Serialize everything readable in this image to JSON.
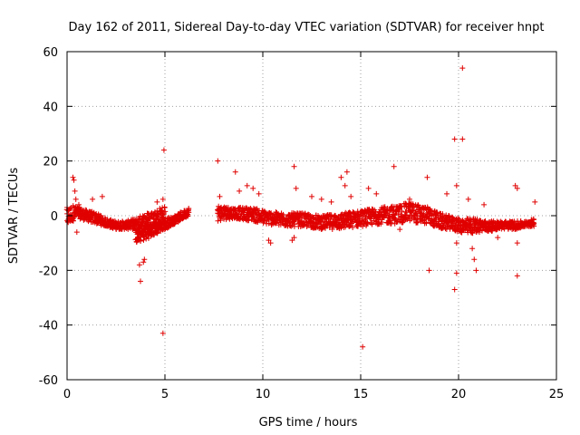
{
  "chart_data": {
    "type": "scatter",
    "title": "Day 162 of 2011, Sidereal Day-to-day VTEC variation (SDTVAR) for receiver hnpt",
    "xlabel": "GPS time / hours",
    "ylabel": "SDTVAR / TECUs",
    "xlim": [
      0,
      25
    ],
    "ylim": [
      -60,
      60
    ],
    "xticks": [
      0,
      5,
      10,
      15,
      20,
      25
    ],
    "xtick_labels": [
      "0",
      "5",
      "10",
      "15",
      "20",
      "25"
    ],
    "yticks": [
      -60,
      -40,
      -20,
      0,
      20,
      40,
      60
    ],
    "ytick_labels": [
      "-60",
      "-40",
      "-20",
      "0",
      "20",
      "40",
      "60"
    ],
    "grid": true,
    "marker": "+",
    "color": "#e00000",
    "band_segments": [
      {
        "x": [
          0.0,
          0.3,
          0.6,
          1.0,
          1.5,
          2.0,
          2.5,
          3.0,
          3.5,
          4.0,
          4.5,
          5.0
        ],
        "y_low": [
          -4,
          -2,
          -1,
          -2,
          -3,
          -4,
          -5,
          -5,
          -5,
          -5,
          -4,
          -3
        ],
        "y_high": [
          3,
          4,
          3,
          2,
          1,
          -1,
          -2,
          -2,
          -1,
          1,
          2,
          4
        ]
      },
      {
        "x": [
          3.5,
          4.0,
          4.5,
          5.0,
          5.5,
          6.0,
          6.2
        ],
        "y_low": [
          -10,
          -9,
          -7,
          -5,
          -3,
          -1,
          0
        ],
        "y_high": [
          -5,
          -4,
          -3,
          -1,
          0,
          2,
          3
        ]
      },
      {
        "x": [
          7.7,
          8.5,
          9.5,
          10.0,
          11.0,
          12.0,
          13.0,
          14.0,
          15.0,
          16.0,
          17.0,
          17.5,
          18.0,
          18.5,
          19.0,
          19.5,
          20.0,
          20.5,
          21.0,
          21.5,
          22.0,
          22.5,
          23.0,
          23.5,
          23.9
        ],
        "y_low": [
          -2,
          -1,
          -2,
          -3,
          -4,
          -4,
          -5,
          -5,
          -4,
          -3,
          -3,
          -2,
          -3,
          -3,
          -5,
          -5,
          -6,
          -7,
          -6,
          -6,
          -5,
          -5,
          -5,
          -4,
          -4
        ],
        "y_high": [
          4,
          3,
          3,
          2,
          1,
          1,
          0,
          1,
          2,
          3,
          4,
          5,
          4,
          3,
          1,
          0,
          -1,
          -1,
          -1,
          -2,
          -2,
          -2,
          -2,
          -2,
          -1
        ]
      }
    ],
    "outliers": [
      {
        "x": 0.3,
        "y": 14
      },
      {
        "x": 0.35,
        "y": 13
      },
      {
        "x": 0.4,
        "y": 9
      },
      {
        "x": 0.45,
        "y": 6
      },
      {
        "x": 0.5,
        "y": -6
      },
      {
        "x": 0.6,
        "y": 4
      },
      {
        "x": 1.3,
        "y": 6
      },
      {
        "x": 1.8,
        "y": 7
      },
      {
        "x": 3.7,
        "y": -18
      },
      {
        "x": 3.75,
        "y": -24
      },
      {
        "x": 3.9,
        "y": -17
      },
      {
        "x": 3.95,
        "y": -16
      },
      {
        "x": 4.6,
        "y": 5
      },
      {
        "x": 4.9,
        "y": 6
      },
      {
        "x": 4.95,
        "y": 24
      },
      {
        "x": 4.9,
        "y": -43
      },
      {
        "x": 7.7,
        "y": 20
      },
      {
        "x": 7.8,
        "y": 7
      },
      {
        "x": 8.6,
        "y": 16
      },
      {
        "x": 8.8,
        "y": 9
      },
      {
        "x": 9.2,
        "y": 11
      },
      {
        "x": 9.5,
        "y": 10
      },
      {
        "x": 9.8,
        "y": 8
      },
      {
        "x": 10.3,
        "y": -9
      },
      {
        "x": 10.4,
        "y": -10
      },
      {
        "x": 11.6,
        "y": 18
      },
      {
        "x": 11.7,
        "y": 10
      },
      {
        "x": 11.6,
        "y": -8
      },
      {
        "x": 11.5,
        "y": -9
      },
      {
        "x": 12.5,
        "y": 7
      },
      {
        "x": 13.0,
        "y": 6
      },
      {
        "x": 13.5,
        "y": 5
      },
      {
        "x": 14.0,
        "y": 14
      },
      {
        "x": 14.3,
        "y": 16
      },
      {
        "x": 14.2,
        "y": 11
      },
      {
        "x": 14.5,
        "y": 7
      },
      {
        "x": 15.1,
        "y": -48
      },
      {
        "x": 15.4,
        "y": 10
      },
      {
        "x": 15.8,
        "y": 8
      },
      {
        "x": 16.7,
        "y": 18
      },
      {
        "x": 17.0,
        "y": -5
      },
      {
        "x": 17.5,
        "y": 6
      },
      {
        "x": 18.4,
        "y": 14
      },
      {
        "x": 18.5,
        "y": -20
      },
      {
        "x": 19.4,
        "y": 8
      },
      {
        "x": 19.8,
        "y": 28
      },
      {
        "x": 19.9,
        "y": 11
      },
      {
        "x": 19.8,
        "y": -27
      },
      {
        "x": 19.9,
        "y": -21
      },
      {
        "x": 19.9,
        "y": -10
      },
      {
        "x": 20.2,
        "y": 54
      },
      {
        "x": 20.2,
        "y": 28
      },
      {
        "x": 20.5,
        "y": 6
      },
      {
        "x": 20.8,
        "y": -16
      },
      {
        "x": 20.9,
        "y": -20
      },
      {
        "x": 20.7,
        "y": -12
      },
      {
        "x": 21.3,
        "y": 4
      },
      {
        "x": 22.0,
        "y": -8
      },
      {
        "x": 22.9,
        "y": 11
      },
      {
        "x": 23.0,
        "y": 10
      },
      {
        "x": 23.0,
        "y": -22
      },
      {
        "x": 23.0,
        "y": -10
      },
      {
        "x": 23.9,
        "y": 5
      }
    ]
  }
}
